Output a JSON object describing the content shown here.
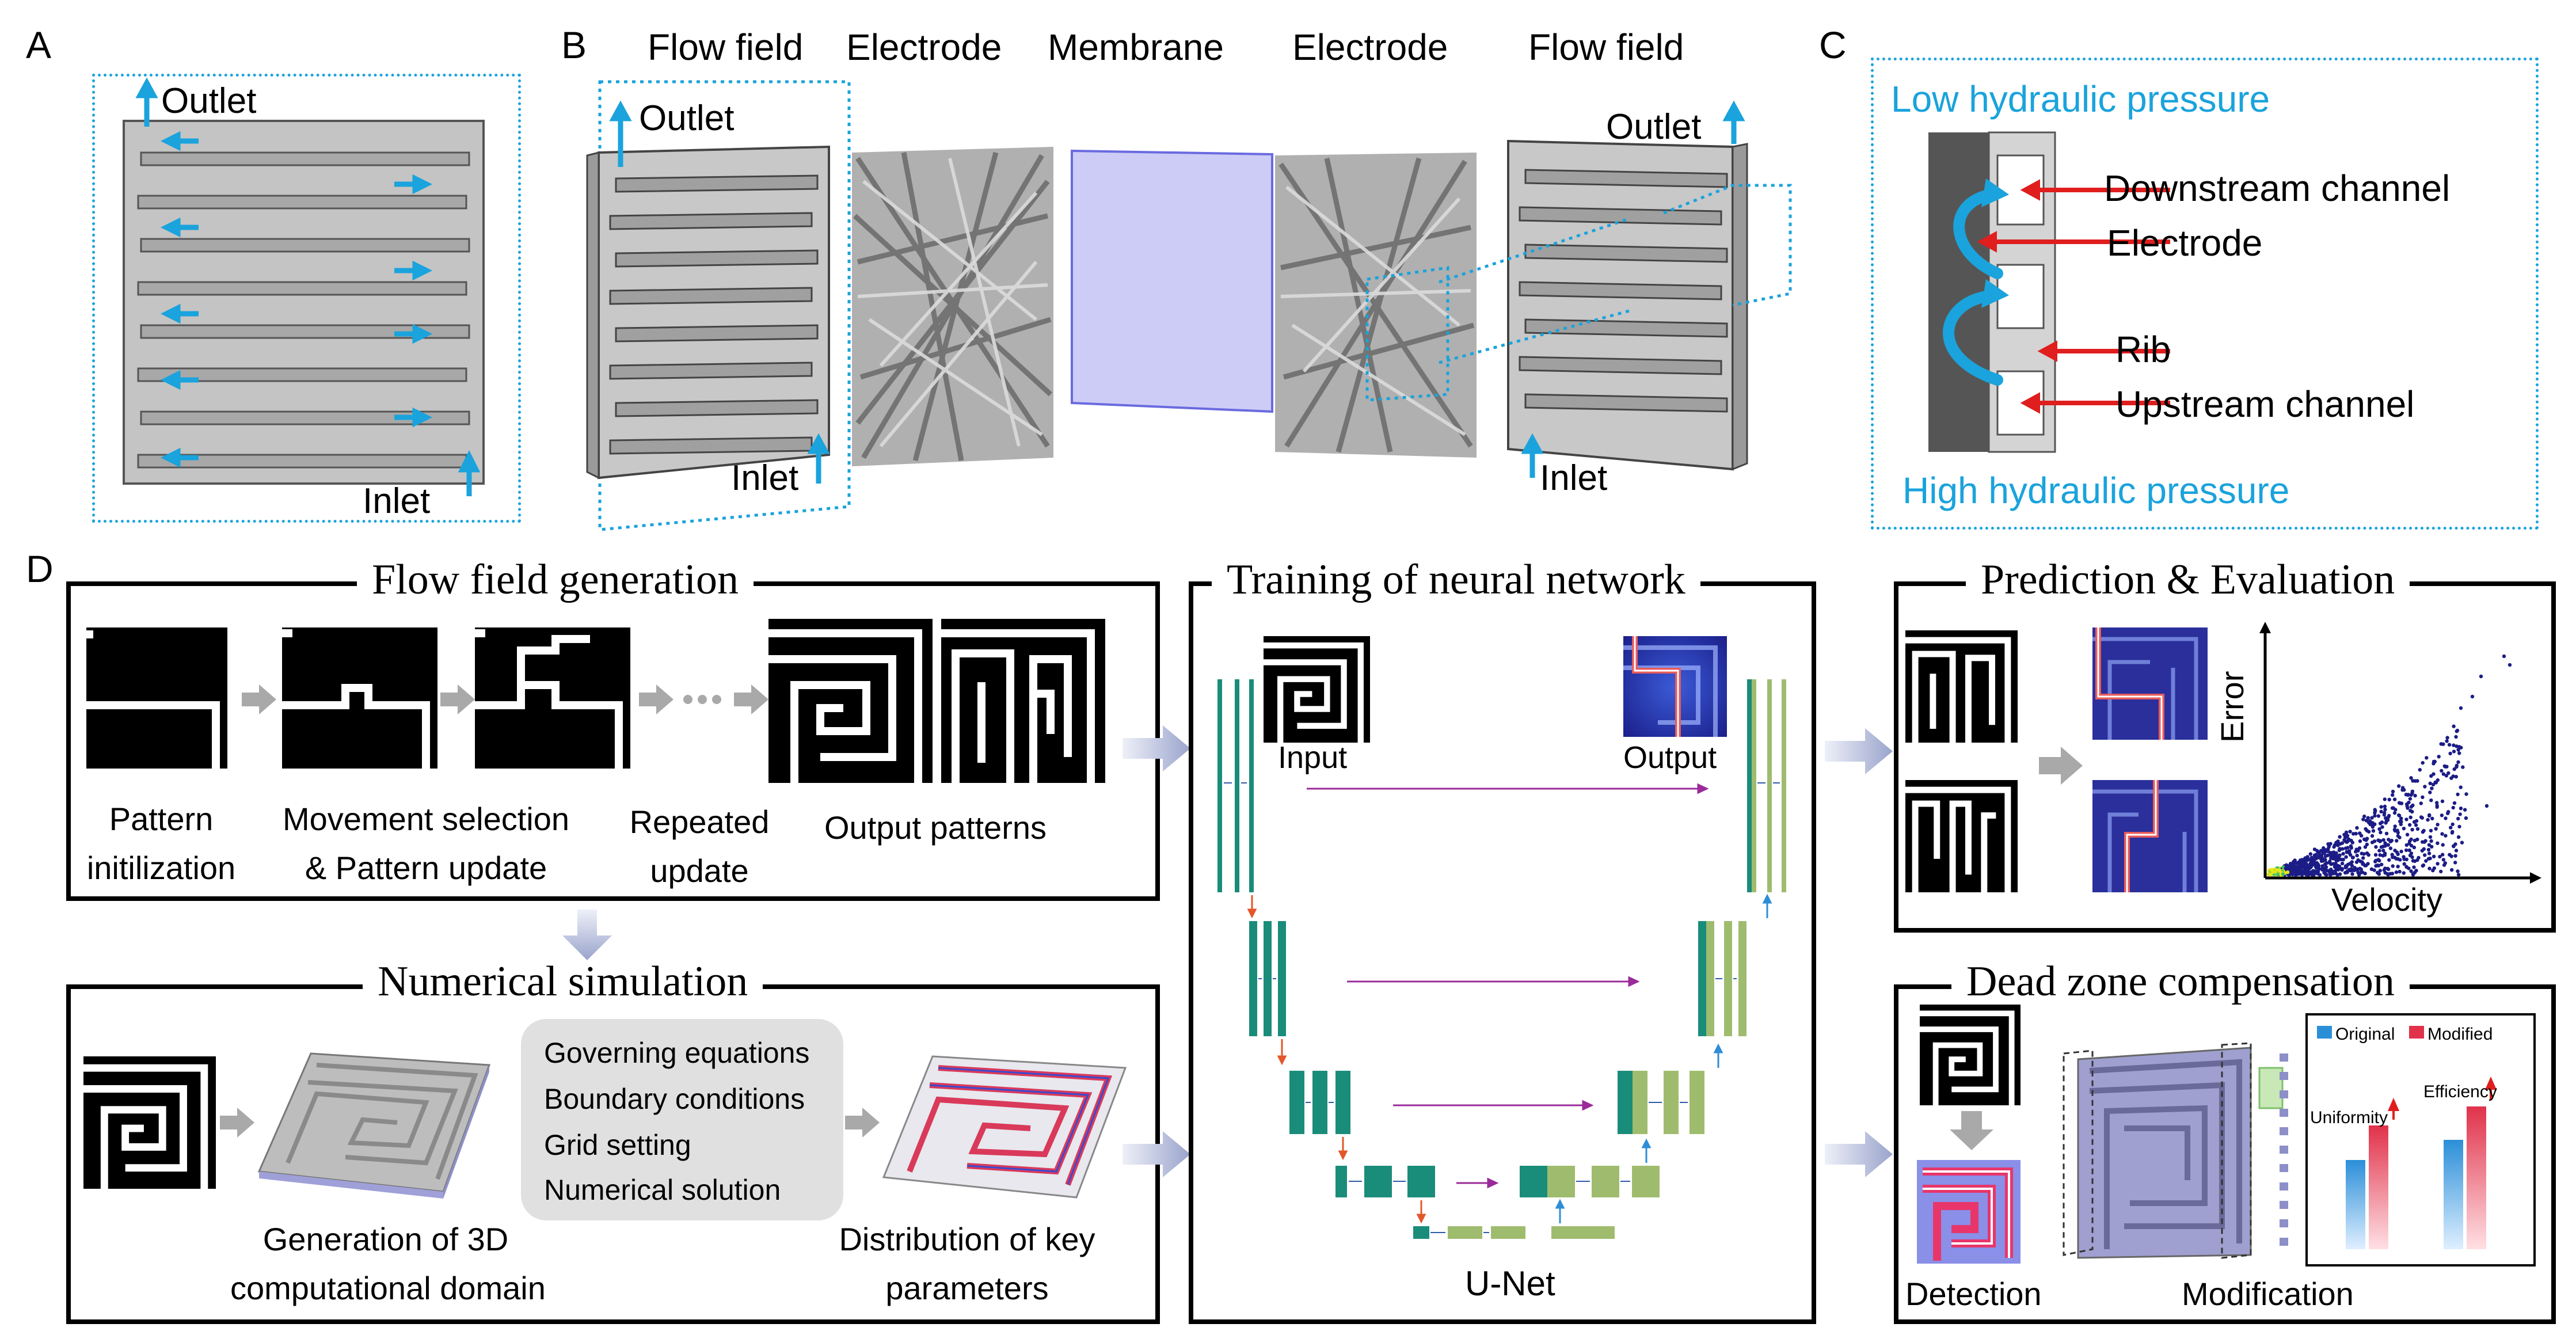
{
  "panels": {
    "a": "A",
    "b": "B",
    "c": "C",
    "d": "D"
  },
  "panel_a": {
    "outlet": "Outlet",
    "inlet": "Inlet"
  },
  "panel_b": {
    "headers": [
      "Flow field",
      "Electrode",
      "Membrane",
      "Electrode",
      "Flow field"
    ],
    "outlet_left": "Outlet",
    "inlet_left": "Inlet",
    "outlet_right": "Outlet",
    "inlet_right": "Inlet"
  },
  "panel_c": {
    "low_pressure": "Low hydraulic pressure",
    "high_pressure": "High hydraulic pressure",
    "downstream": "Downstream channel",
    "electrode": "Electrode",
    "rib": "Rib",
    "upstream": "Upstream channel"
  },
  "flow_field_generation": {
    "title": "Flow field generation",
    "step1": [
      "Pattern",
      "initilization"
    ],
    "step2": [
      "Movement selection",
      "& Pattern update"
    ],
    "step3": [
      "Repeated",
      "update"
    ],
    "step4": "Output patterns"
  },
  "numerical_simulation": {
    "title": "Numerical simulation",
    "settings": [
      "Governing equations",
      "Boundary conditions",
      "Grid setting",
      "Numerical solution"
    ],
    "caption1": [
      "Generation of 3D",
      "computational domain"
    ],
    "caption2": [
      "Distribution of key",
      "parameters"
    ]
  },
  "training": {
    "title": "Training of neural network",
    "input": "Input",
    "output": "Output",
    "unet": "U-Net"
  },
  "prediction": {
    "title": "Prediction & Evaluation",
    "ylabel": "Error",
    "xlabel": "Velocity"
  },
  "dead_zone": {
    "title": "Dead zone compensation",
    "detection": "Detection",
    "modification": "Modification",
    "legend_original": "Original",
    "legend_modified": "Modified",
    "uniformity": "Uniformity",
    "efficiency": "Efficiency"
  },
  "colors": {
    "accent_blue": "#1aa3dc",
    "unet_teal": "#1a8c7a",
    "unet_green": "#9fbc6e",
    "bar_original": "#2b8fd8",
    "bar_modified": "#e0324a"
  }
}
